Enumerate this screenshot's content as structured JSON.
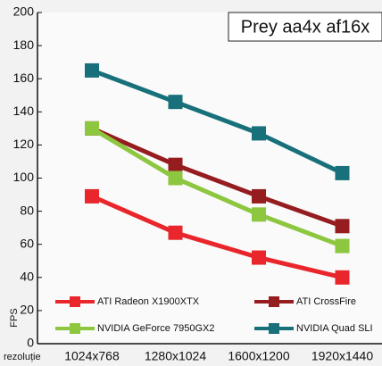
{
  "chart_data": {
    "type": "line",
    "title": "Prey aa4x af16x",
    "xlabel": "rezoluție",
    "ylabel": "FPS",
    "categories": [
      "1024x768",
      "1280x1024",
      "1600x1200",
      "1920x1440"
    ],
    "series": [
      {
        "name": "ATI Radeon X1900XTX",
        "color": "#e8262b",
        "values": [
          89,
          67,
          52,
          40
        ]
      },
      {
        "name": "ATI CrossFire",
        "color": "#951c1f",
        "values": [
          130,
          108,
          89,
          71
        ]
      },
      {
        "name": "NVIDIA GeForce 7950GX2",
        "color": "#8dc63f",
        "values": [
          130,
          100,
          78,
          59
        ]
      },
      {
        "name": "NVIDIA Quad SLI",
        "color": "#17707a",
        "values": [
          165,
          146,
          127,
          103
        ]
      }
    ],
    "ylim": [
      0,
      200
    ],
    "yticks": [
      0,
      20,
      40,
      60,
      80,
      100,
      120,
      140,
      160,
      180,
      200
    ],
    "grid": false
  }
}
